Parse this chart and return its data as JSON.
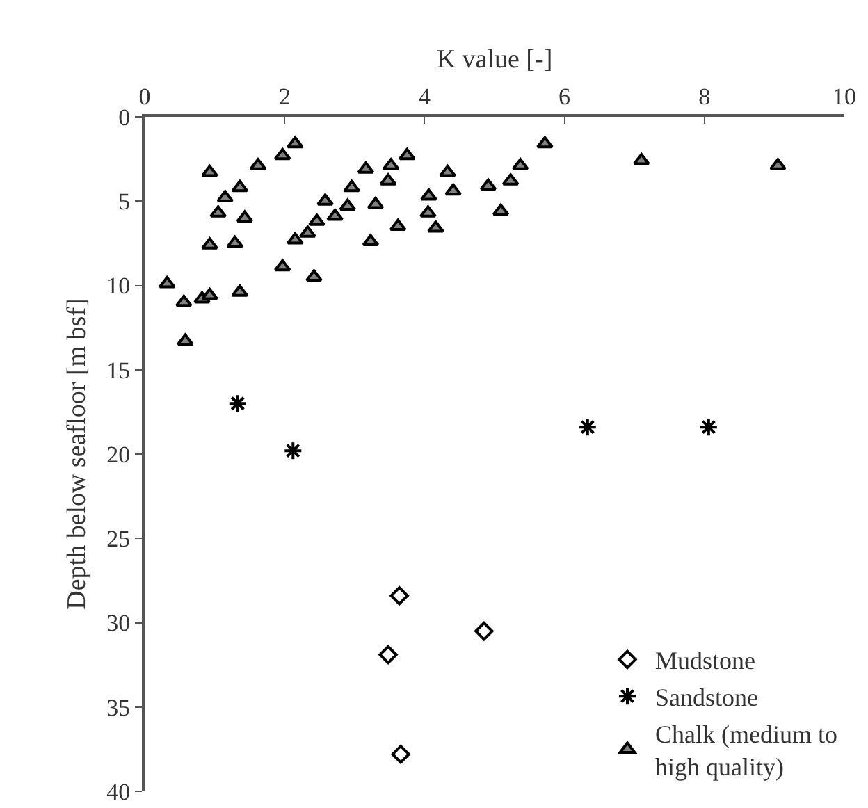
{
  "chart_data": {
    "type": "scatter",
    "xlabel": "K value [-]",
    "ylabel": "Depth below seafloor [m bsf]",
    "xlim": [
      0,
      10
    ],
    "xticks": [
      0,
      2,
      4,
      6,
      8,
      10
    ],
    "ylim": [
      40,
      0
    ],
    "yticks": [
      0,
      5,
      10,
      15,
      20,
      25,
      30,
      35,
      40
    ],
    "grid": false,
    "legend": "bottom right",
    "series": [
      {
        "name": "Mudstone",
        "color": "#ffffff",
        "marker": "diamond",
        "x": [
          3.64,
          4.85,
          3.48,
          3.66
        ],
        "values": [
          28.4,
          30.5,
          31.9,
          37.8
        ]
      },
      {
        "name": "Sandstone",
        "color": "#000000",
        "marker": "cross",
        "x": [
          1.33,
          2.12,
          6.33,
          8.06
        ],
        "values": [
          17.0,
          19.8,
          18.4,
          18.4
        ]
      },
      {
        "name": "Chalk (medium to high quality)",
        "color": "#808080",
        "marker": "triangle",
        "x": [
          0.93,
          1.15,
          1.36,
          1.05,
          1.43,
          0.93,
          1.29,
          1.62,
          1.97,
          2.15,
          0.32,
          0.56,
          0.82,
          0.93,
          1.36,
          0.58,
          1.97,
          2.42,
          2.15,
          2.33,
          2.46,
          2.58,
          2.72,
          2.9,
          2.96,
          3.16,
          3.23,
          3.3,
          3.48,
          3.52,
          3.75,
          3.62,
          4.06,
          4.05,
          4.16,
          4.33,
          4.41,
          5.72,
          5.37,
          5.23,
          4.91,
          5.09,
          7.1,
          9.05
        ],
        "values": [
          3.3,
          4.8,
          4.2,
          5.7,
          6.0,
          7.6,
          7.5,
          2.9,
          2.3,
          1.6,
          9.9,
          11.0,
          10.8,
          10.6,
          10.4,
          13.3,
          8.9,
          9.5,
          7.3,
          6.9,
          6.2,
          5.0,
          5.9,
          5.3,
          4.2,
          3.1,
          7.4,
          5.2,
          3.8,
          2.9,
          2.3,
          6.5,
          4.7,
          5.7,
          6.6,
          3.3,
          4.4,
          1.6,
          2.9,
          3.8,
          4.1,
          5.6,
          2.6,
          2.9
        ]
      }
    ]
  }
}
